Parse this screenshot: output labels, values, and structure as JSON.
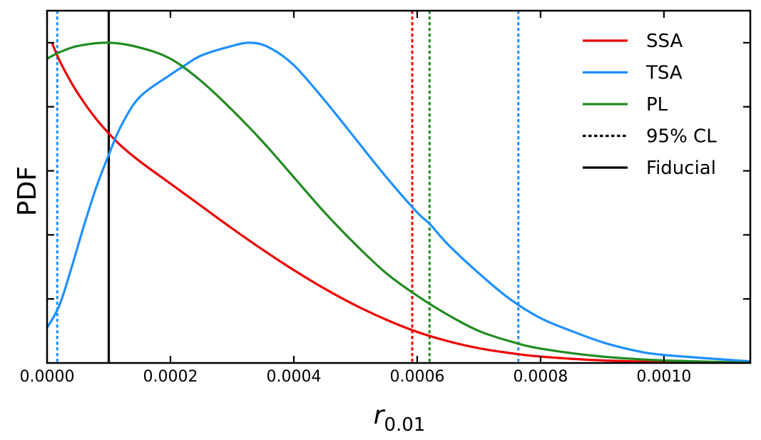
{
  "chart_data": {
    "type": "line",
    "xlabel": "r",
    "xlabel_subscript": "0.01",
    "ylabel": "PDF",
    "xlim": [
      0,
      0.00114
    ],
    "ylim": [
      0,
      1.1
    ],
    "xticks": [
      0.0,
      0.0002,
      0.0004,
      0.0006,
      0.0008,
      0.001
    ],
    "xtick_labels": [
      "0.0000",
      "0.0002",
      "0.0004",
      "0.0006",
      "0.0008",
      "0.0010"
    ],
    "yticks": [
      0.2,
      0.4,
      0.6,
      0.8,
      1.0
    ],
    "ytick_labels_shown": false,
    "grid": false,
    "legend_position": "top-right",
    "series": [
      {
        "name": "SSA",
        "color": "#ee0000",
        "x": [
          8e-06,
          2e-05,
          4e-05,
          6e-05,
          8e-05,
          0.0001,
          0.00012,
          0.00015,
          0.0002,
          0.00025,
          0.0003,
          0.00035,
          0.0004,
          0.00045,
          0.0005,
          0.00055,
          0.0006,
          0.00065,
          0.0007,
          0.00075,
          0.0008,
          0.0009,
          0.001,
          0.00114
        ],
        "y": [
          1.0,
          0.945,
          0.873,
          0.813,
          0.761,
          0.717,
          0.678,
          0.63,
          0.56,
          0.49,
          0.42,
          0.353,
          0.29,
          0.232,
          0.18,
          0.135,
          0.097,
          0.068,
          0.046,
          0.031,
          0.02,
          0.008,
          0.003,
          0.0
        ]
      },
      {
        "name": "TSA",
        "color": "#1e90ff",
        "x": [
          0.0,
          2e-05,
          4e-05,
          6e-05,
          8e-05,
          0.0001,
          0.00012,
          0.00015,
          0.0002,
          0.00022,
          0.00025,
          0.0003,
          0.00033,
          0.00036,
          0.0004,
          0.00045,
          0.0005,
          0.00055,
          0.0006,
          0.00062,
          0.00065,
          0.0007,
          0.00075,
          0.0008,
          0.00085,
          0.0009,
          0.00095,
          0.001,
          0.00114
        ],
        "y": [
          0.11,
          0.18,
          0.3,
          0.43,
          0.55,
          0.65,
          0.74,
          0.83,
          0.9,
          0.925,
          0.96,
          0.99,
          1.0,
          0.985,
          0.93,
          0.82,
          0.7,
          0.58,
          0.47,
          0.435,
          0.37,
          0.28,
          0.2,
          0.14,
          0.1,
          0.065,
          0.04,
          0.025,
          0.005
        ]
      },
      {
        "name": "PL",
        "color": "#228b22",
        "x": [
          0.0,
          2e-05,
          5e-05,
          0.0001,
          0.00015,
          0.0002,
          0.00025,
          0.0003,
          0.00035,
          0.0004,
          0.00045,
          0.0005,
          0.00055,
          0.0006,
          0.00065,
          0.0007,
          0.00075,
          0.0008,
          0.0009,
          0.001,
          0.00114
        ],
        "y": [
          0.95,
          0.97,
          0.99,
          1.0,
          0.985,
          0.95,
          0.88,
          0.79,
          0.69,
          0.58,
          0.47,
          0.37,
          0.28,
          0.21,
          0.15,
          0.1,
          0.068,
          0.045,
          0.02,
          0.008,
          0.001
        ]
      }
    ],
    "vlines": [
      {
        "series": "SSA",
        "style": "dotted",
        "color": "#ee0000",
        "x": 0.000592
      },
      {
        "series": "PL",
        "style": "dotted",
        "color": "#228b22",
        "x": 0.00062
      },
      {
        "series": "TSA",
        "style": "dotted",
        "color": "#1e90ff",
        "x": 1.65e-05
      },
      {
        "series": "TSA",
        "style": "dotted",
        "color": "#1e90ff",
        "x": 0.000764
      },
      {
        "series": "Fiducial",
        "style": "solid",
        "color": "#000000",
        "x": 0.0001
      }
    ],
    "legend": [
      {
        "label": "SSA",
        "color": "#ee0000",
        "style": "solid"
      },
      {
        "label": "TSA",
        "color": "#1e90ff",
        "style": "solid"
      },
      {
        "label": "PL",
        "color": "#228b22",
        "style": "solid"
      },
      {
        "label": "95% CL",
        "color": "#000000",
        "style": "dotted"
      },
      {
        "label": "Fiducial",
        "color": "#000000",
        "style": "solid"
      }
    ]
  }
}
